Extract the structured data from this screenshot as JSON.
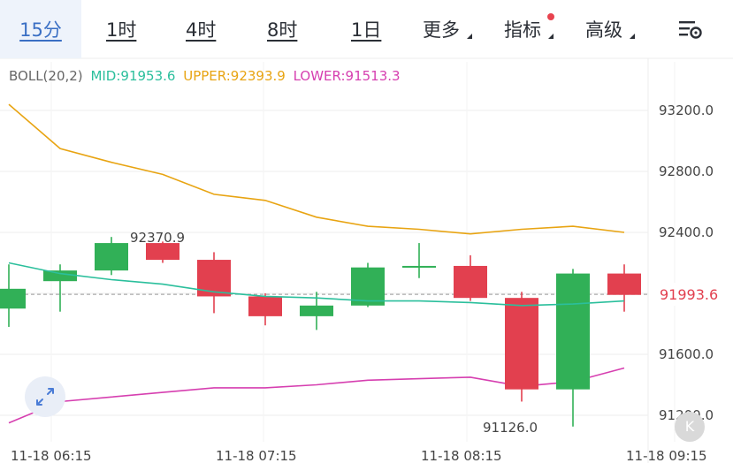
{
  "toolbar": {
    "tabs": [
      {
        "label": "15分",
        "active": true
      },
      {
        "label": "1时"
      },
      {
        "label": "4时"
      },
      {
        "label": "8时"
      },
      {
        "label": "1日"
      }
    ],
    "more_label": "更多",
    "indicator_label": "指标",
    "advanced_label": "高级",
    "settings_icon": "chart-settings-icon"
  },
  "legend": {
    "boll": "BOLL(20,2)",
    "mid": "MID:91953.6",
    "upper": "UPPER:92393.9",
    "lower": "LOWER:91513.3",
    "colors": {
      "mid": "#2bbf9c",
      "upper": "#e8a412",
      "lower": "#d63fb0"
    }
  },
  "chart_data": {
    "type": "candlestick",
    "indicator": "BOLL(20,2)",
    "y_ticks": [
      "93200.0",
      "92800.0",
      "92400.0",
      "92000.0",
      "91600.0",
      "91200.0"
    ],
    "ylim": [
      91050,
      93450
    ],
    "x_ticks": [
      "11-18 06:15",
      "11-18 07:15",
      "11-18 08:15",
      "11-18 09:15"
    ],
    "current_price": "91993.6",
    "annotations": {
      "high": "92370.9",
      "low": "91126.0"
    },
    "colors": {
      "up": "#31b057",
      "down": "#e2404f"
    },
    "candles": [
      {
        "o": 91900,
        "h": 92190,
        "l": 91780,
        "c": 92030
      },
      {
        "o": 92080,
        "h": 92190,
        "l": 91880,
        "c": 92150
      },
      {
        "o": 92150,
        "h": 92370,
        "l": 92120,
        "c": 92330
      },
      {
        "o": 92330,
        "h": 92340,
        "l": 92200,
        "c": 92220
      },
      {
        "o": 92220,
        "h": 92270,
        "l": 91870,
        "c": 91980
      },
      {
        "o": 91980,
        "h": 92000,
        "l": 91790,
        "c": 91850
      },
      {
        "o": 91850,
        "h": 92010,
        "l": 91760,
        "c": 91920
      },
      {
        "o": 91920,
        "h": 92200,
        "l": 91910,
        "c": 92170
      },
      {
        "o": 92180,
        "h": 92330,
        "l": 92100,
        "c": 92180
      },
      {
        "o": 92180,
        "h": 92250,
        "l": 91950,
        "c": 91970
      },
      {
        "o": 91970,
        "h": 92010,
        "l": 91290,
        "c": 91370
      },
      {
        "o": 91370,
        "h": 92160,
        "l": 91126,
        "c": 92130
      },
      {
        "o": 92130,
        "h": 92190,
        "l": 91880,
        "c": 91990
      }
    ],
    "boll_upper": [
      93240,
      92950,
      92860,
      92780,
      92650,
      92610,
      92500,
      92440,
      92420,
      92390,
      92420,
      92440,
      92400
    ],
    "boll_mid": [
      92200,
      92130,
      92090,
      92060,
      92010,
      91980,
      91970,
      91950,
      91950,
      91940,
      91920,
      91930,
      91950
    ],
    "boll_lower": [
      91150,
      91290,
      91320,
      91350,
      91380,
      91380,
      91400,
      91430,
      91440,
      91450,
      91390,
      91420,
      91510
    ]
  }
}
